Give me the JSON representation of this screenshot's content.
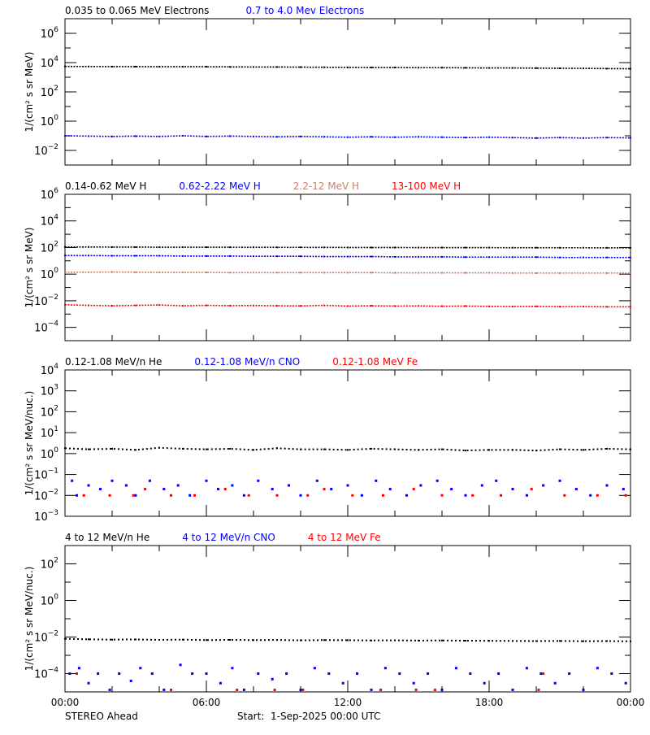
{
  "colors": {
    "black": "#000000",
    "blue": "#0000ff",
    "brown": "#c8806a",
    "red": "#ff0000"
  },
  "x_axis": {
    "ticks": [
      "00:00",
      "06:00",
      "12:00",
      "18:00",
      "00:00"
    ],
    "range_hours": [
      0,
      24
    ]
  },
  "footer": {
    "left": "STEREO Ahead",
    "start": "Start:  1-Sep-2025 00:00 UTC"
  },
  "chart_data": [
    {
      "type": "scatter",
      "ylabel": "1/(cm² s sr MeV)",
      "yscale": "log",
      "ylim": [
        0.001,
        10000000
      ],
      "ytick_exponents": [
        6,
        4,
        2,
        0,
        -2
      ],
      "series": [
        {
          "name": "0.035 to 0.065 MeV Electrons",
          "color": "black",
          "hours": "hourly",
          "values": [
            5500,
            5400,
            5300,
            5300,
            5200,
            5200,
            5200,
            5100,
            5000,
            5000,
            4900,
            4800,
            4700,
            4600,
            4600,
            4500,
            4500,
            4400,
            4300,
            4300,
            4200,
            4100,
            4000,
            3900,
            3800
          ]
        },
        {
          "name": "0.7 to 4.0 Mev Electrons",
          "color": "blue",
          "hours": "hourly",
          "values": [
            0.1,
            0.095,
            0.09,
            0.095,
            0.09,
            0.1,
            0.09,
            0.095,
            0.09,
            0.085,
            0.09,
            0.085,
            0.08,
            0.085,
            0.08,
            0.085,
            0.08,
            0.075,
            0.08,
            0.075,
            0.07,
            0.075,
            0.07,
            0.075,
            0.072
          ]
        }
      ]
    },
    {
      "type": "scatter",
      "ylabel": "1/(cm² s sr MeV)",
      "yscale": "log",
      "ylim": [
        1e-05,
        1000000
      ],
      "ytick_exponents": [
        6,
        4,
        2,
        0,
        -2,
        -4
      ],
      "series": [
        {
          "name": "0.14-0.62 MeV H",
          "color": "black",
          "hours": "hourly",
          "values": [
            110,
            110,
            108,
            108,
            106,
            106,
            105,
            105,
            104,
            103,
            103,
            102,
            101,
            100,
            100,
            99,
            99,
            98,
            98,
            97,
            97,
            96,
            96,
            95,
            95
          ]
        },
        {
          "name": "0.62-2.22 MeV H",
          "color": "blue",
          "hours": "hourly",
          "values": [
            25,
            25,
            24,
            24,
            24,
            23,
            23,
            23,
            22,
            22,
            22,
            21,
            21,
            21,
            20,
            20,
            20,
            19,
            19,
            19,
            19,
            18,
            18,
            18,
            18
          ]
        },
        {
          "name": "2.2-12 MeV H",
          "color": "brown",
          "hours": "hourly",
          "values": [
            1.4,
            1.4,
            1.45,
            1.4,
            1.35,
            1.35,
            1.35,
            1.3,
            1.3,
            1.3,
            1.3,
            1.3,
            1.3,
            1.3,
            1.25,
            1.25,
            1.25,
            1.25,
            1.25,
            1.2,
            1.2,
            1.2,
            1.2,
            1.2,
            1.2
          ]
        },
        {
          "name": "13-100 MeV H",
          "color": "red",
          "hours": "hourly",
          "values": [
            0.005,
            0.0045,
            0.0042,
            0.0045,
            0.0048,
            0.0042,
            0.0045,
            0.0043,
            0.0044,
            0.0042,
            0.0041,
            0.0045,
            0.004,
            0.0042,
            0.004,
            0.0041,
            0.0039,
            0.004,
            0.0038,
            0.0037,
            0.0038,
            0.0036,
            0.0037,
            0.0035,
            0.0035
          ]
        }
      ]
    },
    {
      "type": "scatter",
      "ylabel": "1/(cm² s sr MeV/nuc.)",
      "yscale": "log",
      "ylim": [
        0.001,
        10000
      ],
      "ytick_exponents": [
        4,
        3,
        2,
        1,
        0,
        -1,
        -2,
        -3
      ],
      "series": [
        {
          "name": "0.12-1.08 MeV/n He",
          "color": "black",
          "hours": "hourly",
          "values": [
            1.8,
            1.6,
            1.7,
            1.5,
            1.9,
            1.7,
            1.6,
            1.7,
            1.5,
            1.8,
            1.6,
            1.6,
            1.5,
            1.7,
            1.6,
            1.5,
            1.6,
            1.4,
            1.5,
            1.5,
            1.4,
            1.6,
            1.5,
            1.7,
            1.6
          ]
        },
        {
          "name": "0.12-1.08 MeV/n CNO",
          "color": "blue",
          "hours": "sparse",
          "points": [
            [
              0.3,
              0.05
            ],
            [
              0.5,
              0.01
            ],
            [
              1.0,
              0.03
            ],
            [
              1.5,
              0.02
            ],
            [
              2.0,
              0.05
            ],
            [
              2.6,
              0.03
            ],
            [
              3.0,
              0.01
            ],
            [
              3.6,
              0.05
            ],
            [
              4.2,
              0.02
            ],
            [
              4.8,
              0.03
            ],
            [
              5.3,
              0.01
            ],
            [
              6.0,
              0.05
            ],
            [
              6.5,
              0.02
            ],
            [
              7.1,
              0.03
            ],
            [
              7.6,
              0.01
            ],
            [
              8.2,
              0.05
            ],
            [
              8.8,
              0.02
            ],
            [
              9.5,
              0.03
            ],
            [
              10.0,
              0.01
            ],
            [
              10.7,
              0.05
            ],
            [
              11.3,
              0.02
            ],
            [
              12.0,
              0.03
            ],
            [
              12.6,
              0.01
            ],
            [
              13.2,
              0.05
            ],
            [
              13.8,
              0.02
            ],
            [
              14.5,
              0.01
            ],
            [
              15.1,
              0.03
            ],
            [
              15.8,
              0.05
            ],
            [
              16.4,
              0.02
            ],
            [
              17.0,
              0.01
            ],
            [
              17.7,
              0.03
            ],
            [
              18.3,
              0.05
            ],
            [
              19.0,
              0.02
            ],
            [
              19.6,
              0.01
            ],
            [
              20.3,
              0.03
            ],
            [
              21.0,
              0.05
            ],
            [
              21.7,
              0.02
            ],
            [
              22.3,
              0.01
            ],
            [
              23.0,
              0.03
            ],
            [
              23.7,
              0.02
            ]
          ]
        },
        {
          "name": "0.12-1.08 MeV Fe",
          "color": "red",
          "hours": "sparse",
          "points": [
            [
              0.8,
              0.01
            ],
            [
              1.9,
              0.01
            ],
            [
              2.9,
              0.01
            ],
            [
              3.4,
              0.02
            ],
            [
              4.5,
              0.01
            ],
            [
              5.5,
              0.01
            ],
            [
              6.8,
              0.02
            ],
            [
              7.8,
              0.01
            ],
            [
              9.0,
              0.01
            ],
            [
              10.3,
              0.01
            ],
            [
              11.0,
              0.02
            ],
            [
              12.2,
              0.01
            ],
            [
              13.5,
              0.01
            ],
            [
              14.8,
              0.02
            ],
            [
              16.0,
              0.01
            ],
            [
              17.3,
              0.01
            ],
            [
              18.5,
              0.01
            ],
            [
              19.8,
              0.02
            ],
            [
              21.2,
              0.01
            ],
            [
              22.6,
              0.01
            ],
            [
              23.8,
              0.01
            ]
          ]
        }
      ]
    },
    {
      "type": "scatter",
      "ylabel": "1/(cm² s sr MeV/nuc.)",
      "yscale": "log",
      "ylim": [
        1e-05,
        1000
      ],
      "ytick_exponents": [
        2,
        0,
        -2,
        -4
      ],
      "series": [
        {
          "name": "4 to 12 MeV/n He",
          "color": "black",
          "hours": "hourly",
          "values": [
            0.008,
            0.0075,
            0.0072,
            0.0074,
            0.007,
            0.0072,
            0.0068,
            0.007,
            0.0068,
            0.0069,
            0.0066,
            0.0068,
            0.0067,
            0.0065,
            0.0066,
            0.0064,
            0.0065,
            0.0063,
            0.0062,
            0.0061,
            0.006,
            0.0061,
            0.0059,
            0.006,
            0.0058
          ]
        },
        {
          "name": "4 to 12 MeV/n CNO",
          "color": "blue",
          "hours": "sparse",
          "points": [
            [
              0.2,
              0.0001
            ],
            [
              0.6,
              0.0002
            ],
            [
              1.0,
              3e-05
            ],
            [
              1.4,
              0.0001
            ],
            [
              1.9,
              1.3e-05
            ],
            [
              2.3,
              0.0001
            ],
            [
              2.8,
              4e-05
            ],
            [
              3.2,
              0.0002
            ],
            [
              3.7,
              0.0001
            ],
            [
              4.2,
              1.3e-05
            ],
            [
              4.9,
              0.0003
            ],
            [
              5.4,
              0.0001
            ],
            [
              6.0,
              0.0001
            ],
            [
              6.6,
              3e-05
            ],
            [
              7.1,
              0.0002
            ],
            [
              7.6,
              1.3e-05
            ],
            [
              8.2,
              0.0001
            ],
            [
              8.8,
              5e-05
            ],
            [
              9.4,
              0.0001
            ],
            [
              10.0,
              1.3e-05
            ],
            [
              10.6,
              0.0002
            ],
            [
              11.2,
              0.0001
            ],
            [
              11.8,
              3e-05
            ],
            [
              12.4,
              0.0001
            ],
            [
              13.0,
              1.3e-05
            ],
            [
              13.6,
              0.0002
            ],
            [
              14.2,
              0.0001
            ],
            [
              14.8,
              3e-05
            ],
            [
              15.4,
              0.0001
            ],
            [
              16.0,
              1.3e-05
            ],
            [
              16.6,
              0.0002
            ],
            [
              17.2,
              0.0001
            ],
            [
              17.8,
              3e-05
            ],
            [
              18.4,
              0.0001
            ],
            [
              19.0,
              1.3e-05
            ],
            [
              19.6,
              0.0002
            ],
            [
              20.2,
              0.0001
            ],
            [
              20.8,
              3e-05
            ],
            [
              21.4,
              0.0001
            ],
            [
              22.0,
              1.3e-05
            ],
            [
              22.6,
              0.0002
            ],
            [
              23.2,
              0.0001
            ],
            [
              23.8,
              3e-05
            ]
          ]
        },
        {
          "name": "4 to 12 MeV Fe",
          "color": "red",
          "hours": "sparse",
          "points": [
            [
              0.5,
              0.0001
            ],
            [
              4.5,
              1.3e-05
            ],
            [
              7.3,
              1.3e-05
            ],
            [
              8.9,
              1.3e-05
            ],
            [
              10.1,
              1.3e-05
            ],
            [
              13.4,
              1.3e-05
            ],
            [
              14.9,
              1.3e-05
            ],
            [
              15.7,
              1.3e-05
            ],
            [
              20.3,
              0.0001
            ],
            [
              20.1,
              1.3e-05
            ]
          ]
        }
      ]
    }
  ]
}
